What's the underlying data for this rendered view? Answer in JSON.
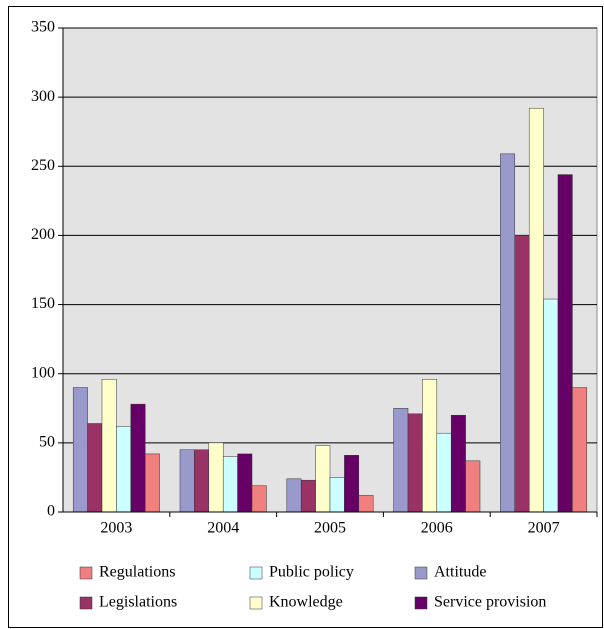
{
  "chart_data": {
    "type": "bar",
    "categories": [
      "2003",
      "2004",
      "2005",
      "2006",
      "2007"
    ],
    "series": [
      {
        "name": "Attitude",
        "color": "#9999cc",
        "values": [
          90,
          45,
          24,
          75,
          259
        ]
      },
      {
        "name": "Legislations",
        "color": "#993366",
        "values": [
          64,
          45,
          23,
          71,
          200
        ]
      },
      {
        "name": "Knowledge",
        "color": "#ffffcc",
        "values": [
          96,
          50,
          48,
          96,
          292
        ]
      },
      {
        "name": "Public policy",
        "color": "#ccffff",
        "values": [
          62,
          40,
          25,
          57,
          154
        ]
      },
      {
        "name": "Service provision",
        "color": "#660066",
        "values": [
          78,
          42,
          41,
          70,
          244
        ]
      },
      {
        "name": "Regulations",
        "color": "#f08080",
        "values": [
          42,
          19,
          12,
          37,
          90
        ]
      }
    ],
    "ylim": [
      0,
      350
    ],
    "yticks": [
      0,
      50,
      100,
      150,
      200,
      250,
      300,
      350
    ],
    "grid": true
  }
}
